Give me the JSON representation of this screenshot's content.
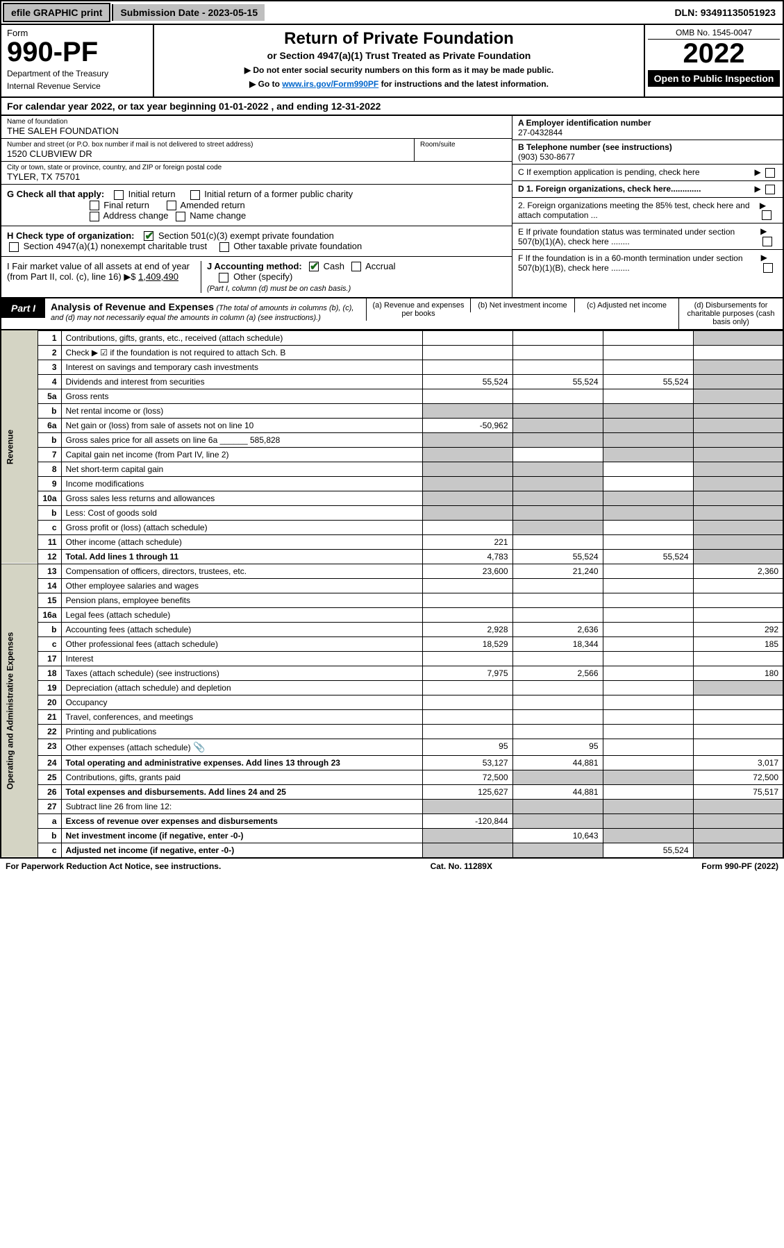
{
  "topbar": {
    "efile": "efile GRAPHIC print",
    "submission": "Submission Date - 2023-05-15",
    "dln": "DLN: 93491135051923"
  },
  "header": {
    "form": "Form",
    "formnum": "990-PF",
    "dept": "Department of the Treasury",
    "irs": "Internal Revenue Service",
    "title": "Return of Private Foundation",
    "subtitle": "or Section 4947(a)(1) Trust Treated as Private Foundation",
    "instr1": "▶ Do not enter social security numbers on this form as it may be made public.",
    "instr2_pre": "▶ Go to ",
    "instr2_link": "www.irs.gov/Form990PF",
    "instr2_post": " for instructions and the latest information.",
    "omb": "OMB No. 1545-0047",
    "year": "2022",
    "open": "Open to Public Inspection"
  },
  "calyear": "For calendar year 2022, or tax year beginning 01-01-2022              , and ending 12-31-2022",
  "entity": {
    "name_label": "Name of foundation",
    "name": "THE SALEH FOUNDATION",
    "addr_label": "Number and street (or P.O. box number if mail is not delivered to street address)",
    "addr": "1520 CLUBVIEW DR",
    "room_label": "Room/suite",
    "city_label": "City or town, state or province, country, and ZIP or foreign postal code",
    "city": "TYLER, TX  75701",
    "ein_label": "A Employer identification number",
    "ein": "27-0432844",
    "phone_label": "B Telephone number (see instructions)",
    "phone": "(903) 530-8677",
    "c": "C If exemption application is pending, check here",
    "d1": "D 1. Foreign organizations, check here.............",
    "d2": "2. Foreign organizations meeting the 85% test, check here and attach computation ...",
    "e": "E If private foundation status was terminated under section 507(b)(1)(A), check here ........",
    "f": "F If the foundation is in a 60-month termination under section 507(b)(1)(B), check here ........"
  },
  "g": {
    "label": "G Check all that apply:",
    "o1": "Initial return",
    "o2": "Final return",
    "o3": "Address change",
    "o4": "Initial return of a former public charity",
    "o5": "Amended return",
    "o6": "Name change"
  },
  "h": {
    "label": "H Check type of organization:",
    "o1": "Section 501(c)(3) exempt private foundation",
    "o2": "Section 4947(a)(1) nonexempt charitable trust",
    "o3": "Other taxable private foundation"
  },
  "i": {
    "label": "I Fair market value of all assets at end of year (from Part II, col. (c), line 16) ▶$",
    "val": "1,409,490"
  },
  "j": {
    "label": "J Accounting method:",
    "cash": "Cash",
    "accrual": "Accrual",
    "other": "Other (specify)",
    "note": "(Part I, column (d) must be on cash basis.)"
  },
  "part1": {
    "tab": "Part I",
    "title": "Analysis of Revenue and Expenses",
    "note": "(The total of amounts in columns (b), (c), and (d) may not necessarily equal the amounts in column (a) (see instructions).)",
    "ca": "(a)   Revenue and expenses per books",
    "cb": "(b)   Net investment income",
    "cc": "(c)   Adjusted net income",
    "cd": "(d)  Disbursements for charitable purposes (cash basis only)"
  },
  "vert": {
    "rev": "Revenue",
    "exp": "Operating and Administrative Expenses"
  },
  "rows": [
    {
      "n": "1",
      "d": "Contributions, gifts, grants, etc., received (attach schedule)",
      "a": "",
      "b": "",
      "c": "",
      "dd": "",
      "greyd": true
    },
    {
      "n": "2",
      "d": "Check ▶ ☑ if the foundation is not required to attach Sch. B",
      "a": "",
      "b": "",
      "c": "",
      "dd": "",
      "nob": true
    },
    {
      "n": "3",
      "d": "Interest on savings and temporary cash investments",
      "a": "",
      "b": "",
      "c": "",
      "dd": "",
      "greyd": true
    },
    {
      "n": "4",
      "d": "Dividends and interest from securities",
      "a": "55,524",
      "b": "55,524",
      "c": "55,524",
      "dd": "",
      "greyd": true
    },
    {
      "n": "5a",
      "d": "Gross rents",
      "a": "",
      "b": "",
      "c": "",
      "dd": "",
      "greyd": true
    },
    {
      "n": "b",
      "d": "Net rental income or (loss)",
      "a": "",
      "b": "",
      "c": "",
      "dd": "",
      "allgrey": true
    },
    {
      "n": "6a",
      "d": "Net gain or (loss) from sale of assets not on line 10",
      "a": "-50,962",
      "b": "",
      "c": "",
      "dd": "",
      "bcgrey": true,
      "greyd": true
    },
    {
      "n": "b",
      "d": "Gross sales price for all assets on line 6a ______ 585,828",
      "a": "",
      "b": "",
      "c": "",
      "dd": "",
      "allgrey": true
    },
    {
      "n": "7",
      "d": "Capital gain net income (from Part IV, line 2)",
      "a": "",
      "b": "",
      "c": "",
      "dd": "",
      "agrey": true,
      "cgrey": true,
      "greyd": true
    },
    {
      "n": "8",
      "d": "Net short-term capital gain",
      "a": "",
      "b": "",
      "c": "",
      "dd": "",
      "agrey": true,
      "bgrey": true,
      "greyd": true
    },
    {
      "n": "9",
      "d": "Income modifications",
      "a": "",
      "b": "",
      "c": "",
      "dd": "",
      "agrey": true,
      "bgrey": true,
      "greyd": true
    },
    {
      "n": "10a",
      "d": "Gross sales less returns and allowances",
      "a": "",
      "b": "",
      "c": "",
      "dd": "",
      "allgrey": true
    },
    {
      "n": "b",
      "d": "Less: Cost of goods sold",
      "a": "",
      "b": "",
      "c": "",
      "dd": "",
      "allgrey": true
    },
    {
      "n": "c",
      "d": "Gross profit or (loss) (attach schedule)",
      "a": "",
      "b": "",
      "c": "",
      "dd": "",
      "bgrey": true,
      "greyd": true
    },
    {
      "n": "11",
      "d": "Other income (attach schedule)",
      "a": "221",
      "b": "",
      "c": "",
      "dd": "",
      "greyd": true
    },
    {
      "n": "12",
      "d": "Total. Add lines 1 through 11",
      "a": "4,783",
      "b": "55,524",
      "c": "55,524",
      "dd": "",
      "bold": true,
      "greyd": true
    }
  ],
  "exp_rows": [
    {
      "n": "13",
      "d": "Compensation of officers, directors, trustees, etc.",
      "a": "23,600",
      "b": "21,240",
      "c": "",
      "dd": "2,360"
    },
    {
      "n": "14",
      "d": "Other employee salaries and wages",
      "a": "",
      "b": "",
      "c": "",
      "dd": ""
    },
    {
      "n": "15",
      "d": "Pension plans, employee benefits",
      "a": "",
      "b": "",
      "c": "",
      "dd": ""
    },
    {
      "n": "16a",
      "d": "Legal fees (attach schedule)",
      "a": "",
      "b": "",
      "c": "",
      "dd": ""
    },
    {
      "n": "b",
      "d": "Accounting fees (attach schedule)",
      "a": "2,928",
      "b": "2,636",
      "c": "",
      "dd": "292"
    },
    {
      "n": "c",
      "d": "Other professional fees (attach schedule)",
      "a": "18,529",
      "b": "18,344",
      "c": "",
      "dd": "185"
    },
    {
      "n": "17",
      "d": "Interest",
      "a": "",
      "b": "",
      "c": "",
      "dd": ""
    },
    {
      "n": "18",
      "d": "Taxes (attach schedule) (see instructions)",
      "a": "7,975",
      "b": "2,566",
      "c": "",
      "dd": "180"
    },
    {
      "n": "19",
      "d": "Depreciation (attach schedule) and depletion",
      "a": "",
      "b": "",
      "c": "",
      "dd": "",
      "greyd": true
    },
    {
      "n": "20",
      "d": "Occupancy",
      "a": "",
      "b": "",
      "c": "",
      "dd": ""
    },
    {
      "n": "21",
      "d": "Travel, conferences, and meetings",
      "a": "",
      "b": "",
      "c": "",
      "dd": ""
    },
    {
      "n": "22",
      "d": "Printing and publications",
      "a": "",
      "b": "",
      "c": "",
      "dd": ""
    },
    {
      "n": "23",
      "d": "Other expenses (attach schedule)",
      "a": "95",
      "b": "95",
      "c": "",
      "dd": "",
      "clip": true
    },
    {
      "n": "24",
      "d": "Total operating and administrative expenses. Add lines 13 through 23",
      "a": "53,127",
      "b": "44,881",
      "c": "",
      "dd": "3,017",
      "bold": true
    },
    {
      "n": "25",
      "d": "Contributions, gifts, grants paid",
      "a": "72,500",
      "b": "",
      "c": "",
      "dd": "72,500",
      "bgrey": true,
      "cgrey": true
    },
    {
      "n": "26",
      "d": "Total expenses and disbursements. Add lines 24 and 25",
      "a": "125,627",
      "b": "44,881",
      "c": "",
      "dd": "75,517",
      "bold": true
    },
    {
      "n": "27",
      "d": "Subtract line 26 from line 12:",
      "a": "",
      "b": "",
      "c": "",
      "dd": "",
      "allgrey": true
    },
    {
      "n": "a",
      "d": "Excess of revenue over expenses and disbursements",
      "a": "-120,844",
      "b": "",
      "c": "",
      "dd": "",
      "bold": true,
      "bgrey": true,
      "cgrey": true,
      "greyd": true
    },
    {
      "n": "b",
      "d": "Net investment income (if negative, enter -0-)",
      "a": "",
      "b": "10,643",
      "c": "",
      "dd": "",
      "bold": true,
      "agrey": true,
      "cgrey": true,
      "greyd": true
    },
    {
      "n": "c",
      "d": "Adjusted net income (if negative, enter -0-)",
      "a": "",
      "b": "",
      "c": "55,524",
      "dd": "",
      "bold": true,
      "agrey": true,
      "bgrey": true,
      "greyd": true
    }
  ],
  "foot": {
    "l": "For Paperwork Reduction Act Notice, see instructions.",
    "m": "Cat. No. 11289X",
    "r": "Form 990-PF (2022)"
  }
}
